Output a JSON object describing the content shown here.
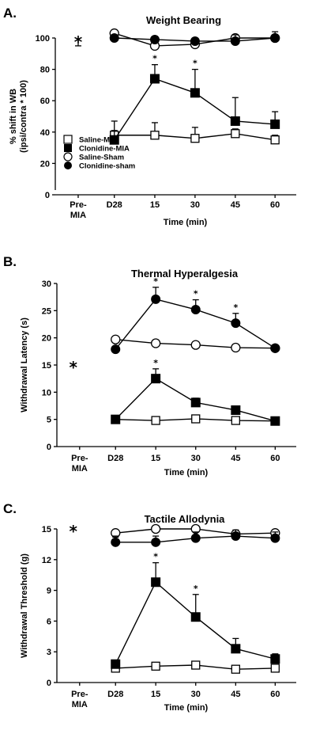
{
  "chart_data": [
    {
      "type": "line",
      "panel": "A.",
      "title": "Weight Bearing",
      "ylabel": "% shift in WB\n(ipsi/contra * 100)",
      "xlabel": "Time (min)",
      "ylim": [
        0,
        100
      ],
      "yticks": [
        "0",
        "20",
        "40",
        "60",
        "80",
        "100"
      ],
      "xticks": [
        "Pre-\nMIA",
        "D28",
        "15",
        "30",
        "45",
        "60"
      ],
      "premia_marker": "*",
      "legend": [
        "Saline-MIA",
        "Clonidine-MIA",
        "Saline-Sham",
        "Clonidine-sham"
      ],
      "series": [
        {
          "name": "Saline-MIA",
          "marker": "open-square",
          "values": [
            null,
            38,
            38,
            36,
            39,
            35
          ],
          "err": [
            0,
            3,
            8,
            7,
            3,
            3
          ]
        },
        {
          "name": "Clonidine-MIA",
          "marker": "filled-square",
          "values": [
            null,
            35,
            74,
            65,
            47,
            45
          ],
          "err": [
            0,
            12,
            9,
            15,
            15,
            8
          ]
        },
        {
          "name": "Saline-Sham",
          "marker": "open-circle",
          "values": [
            null,
            103,
            95,
            96,
            100,
            100
          ],
          "err": [
            0,
            1,
            2,
            2,
            2,
            2
          ]
        },
        {
          "name": "Clonidine-sham",
          "marker": "filled-circle",
          "values": [
            null,
            100,
            99,
            98,
            98,
            100
          ],
          "err": [
            0,
            2,
            2,
            2,
            4,
            4
          ]
        }
      ],
      "premia_point": {
        "value": 100,
        "err": 5
      },
      "significance": [
        "",
        "",
        "*",
        "*",
        "",
        ""
      ]
    },
    {
      "type": "line",
      "panel": "B.",
      "title": "Thermal Hyperalgesia",
      "ylabel": "Withdrawal Latency (s)",
      "xlabel": "Time (min)",
      "ylim": [
        0,
        30
      ],
      "yticks": [
        "0",
        "5",
        "10",
        "15",
        "20",
        "25",
        "30"
      ],
      "xticks": [
        "Pre-\nMIA",
        "D28",
        "15",
        "30",
        "45",
        "60"
      ],
      "premia_marker": "*",
      "series": [
        {
          "name": "Saline-MIA",
          "marker": "open-square",
          "values": [
            null,
            5,
            4.8,
            5.1,
            4.8,
            4.7
          ],
          "err": [
            0,
            0.3,
            0.4,
            0.4,
            0.3,
            0.3
          ]
        },
        {
          "name": "Clonidine-MIA",
          "marker": "filled-square",
          "values": [
            null,
            5,
            12.5,
            8.1,
            6.7,
            4.7
          ],
          "err": [
            0,
            0.3,
            1.8,
            0.8,
            0.5,
            0.3
          ]
        },
        {
          "name": "Saline-Sham",
          "marker": "open-circle",
          "values": [
            null,
            19.7,
            19,
            18.7,
            18.2,
            18.1
          ],
          "err": [
            0,
            0.4,
            0.4,
            0.4,
            0.4,
            0.4
          ]
        },
        {
          "name": "Clonidine-sham",
          "marker": "filled-circle",
          "values": [
            null,
            17.9,
            27.1,
            25.2,
            22.7,
            18.1
          ],
          "err": [
            0,
            0.4,
            2.2,
            1.8,
            1.8,
            0.4
          ]
        }
      ],
      "significance_high": [
        "",
        "",
        "*",
        "*",
        "*",
        ""
      ],
      "significance_low": [
        "",
        "",
        "*",
        "",
        "",
        ""
      ]
    },
    {
      "type": "line",
      "panel": "C.",
      "title": "Tactile Allodynia",
      "ylabel": "Withdrawal Threshold (g)",
      "xlabel": "Time (min)",
      "ylim": [
        0,
        15
      ],
      "yticks": [
        "0",
        "3",
        "6",
        "9",
        "12",
        "15"
      ],
      "xticks": [
        "Pre-\nMIA",
        "D28",
        "15",
        "30",
        "45",
        "60"
      ],
      "premia_marker": "*",
      "series": [
        {
          "name": "Saline-MIA",
          "marker": "open-square",
          "values": [
            null,
            1.4,
            1.6,
            1.7,
            1.3,
            1.4
          ],
          "err": [
            0,
            0.3,
            0.3,
            0.3,
            0.3,
            0.3
          ]
        },
        {
          "name": "Clonidine-MIA",
          "marker": "filled-square",
          "values": [
            null,
            1.8,
            9.8,
            6.4,
            3.3,
            2.3
          ],
          "err": [
            0,
            0.3,
            1.9,
            2.2,
            1.0,
            0.5
          ]
        },
        {
          "name": "Saline-Sham",
          "marker": "open-circle",
          "values": [
            null,
            14.6,
            15,
            15,
            14.5,
            14.6
          ],
          "err": [
            0,
            0.4,
            0.3,
            0.3,
            0.4,
            0.4
          ]
        },
        {
          "name": "Clonidine-sham",
          "marker": "filled-circle",
          "values": [
            null,
            13.7,
            13.7,
            14.1,
            14.3,
            14.1
          ],
          "err": [
            0,
            0.6,
            0.6,
            0.6,
            0.6,
            0.6
          ]
        }
      ],
      "significance": [
        "",
        "",
        "*",
        "*",
        "",
        ""
      ]
    }
  ]
}
